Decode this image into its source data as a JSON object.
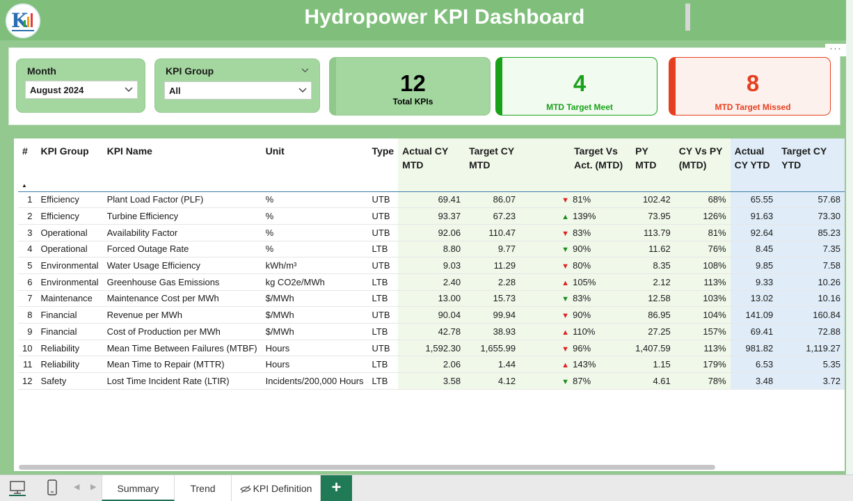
{
  "header": {
    "title": "Hydropower KPI Dashboard"
  },
  "filters": {
    "month": {
      "label": "Month",
      "value": "August 2024"
    },
    "kpi_group": {
      "label": "KPI Group",
      "value": "All"
    }
  },
  "cards": {
    "total": {
      "value": "12",
      "caption": "Total KPIs",
      "color": "#000000"
    },
    "meet": {
      "value": "4",
      "caption": "MTD Target Meet",
      "color": "#1aa11a"
    },
    "missed": {
      "value": "8",
      "caption": "MTD Target Missed",
      "color": "#e53f1f"
    }
  },
  "table": {
    "columns": [
      "#",
      "KPI Group",
      "KPI Name",
      "Unit",
      "Type",
      "Actual CY MTD",
      "Target CY MTD",
      "Target Vs Act. (MTD)",
      "PY MTD",
      "CY Vs PY (MTD)",
      "Actual CY YTD",
      "Target CY YTD"
    ],
    "rows": [
      {
        "n": "1",
        "group": "Efficiency",
        "name": "Plant Load Factor (PLF)",
        "unit": "%",
        "type": "UTB",
        "act": "69.41",
        "tgt": "86.07",
        "dir": "down",
        "tva": "81%",
        "py": "102.42",
        "cvp": "68%",
        "ytd": "65.55",
        "tytd": "57.68"
      },
      {
        "n": "2",
        "group": "Efficiency",
        "name": "Turbine Efficiency",
        "unit": "%",
        "type": "UTB",
        "act": "93.37",
        "tgt": "67.23",
        "dir": "up",
        "tva": "139%",
        "py": "73.95",
        "cvp": "126%",
        "ytd": "91.63",
        "tytd": "73.30"
      },
      {
        "n": "3",
        "group": "Operational",
        "name": "Availability Factor",
        "unit": "%",
        "type": "UTB",
        "act": "92.06",
        "tgt": "110.47",
        "dir": "down",
        "tva": "83%",
        "py": "113.79",
        "cvp": "81%",
        "ytd": "92.64",
        "tytd": "85.23"
      },
      {
        "n": "4",
        "group": "Operational",
        "name": "Forced Outage Rate",
        "unit": "%",
        "type": "LTB",
        "act": "8.80",
        "tgt": "9.77",
        "dir": "down-g",
        "tva": "90%",
        "py": "11.62",
        "cvp": "76%",
        "ytd": "8.45",
        "tytd": "7.35"
      },
      {
        "n": "5",
        "group": "Environmental",
        "name": "Water Usage Efficiency",
        "unit": "kWh/m³",
        "type": "UTB",
        "act": "9.03",
        "tgt": "11.29",
        "dir": "down",
        "tva": "80%",
        "py": "8.35",
        "cvp": "108%",
        "ytd": "9.85",
        "tytd": "7.58"
      },
      {
        "n": "6",
        "group": "Environmental",
        "name": "Greenhouse Gas Emissions",
        "unit": "kg CO2e/MWh",
        "type": "LTB",
        "act": "2.40",
        "tgt": "2.28",
        "dir": "up-r",
        "tva": "105%",
        "py": "2.12",
        "cvp": "113%",
        "ytd": "9.33",
        "tytd": "10.26"
      },
      {
        "n": "7",
        "group": "Maintenance",
        "name": "Maintenance Cost per MWh",
        "unit": "$/MWh",
        "type": "LTB",
        "act": "13.00",
        "tgt": "15.73",
        "dir": "down-g",
        "tva": "83%",
        "py": "12.58",
        "cvp": "103%",
        "ytd": "13.02",
        "tytd": "10.16"
      },
      {
        "n": "8",
        "group": "Financial",
        "name": "Revenue per MWh",
        "unit": "$/MWh",
        "type": "UTB",
        "act": "90.04",
        "tgt": "99.94",
        "dir": "down",
        "tva": "90%",
        "py": "86.95",
        "cvp": "104%",
        "ytd": "141.09",
        "tytd": "160.84"
      },
      {
        "n": "9",
        "group": "Financial",
        "name": "Cost of Production per MWh",
        "unit": "$/MWh",
        "type": "LTB",
        "act": "42.78",
        "tgt": "38.93",
        "dir": "up-r",
        "tva": "110%",
        "py": "27.25",
        "cvp": "157%",
        "ytd": "69.41",
        "tytd": "72.88"
      },
      {
        "n": "10",
        "group": "Reliability",
        "name": "Mean Time Between Failures (MTBF)",
        "unit": "Hours",
        "type": "UTB",
        "act": "1,592.30",
        "tgt": "1,655.99",
        "dir": "down",
        "tva": "96%",
        "py": "1,407.59",
        "cvp": "113%",
        "ytd": "981.82",
        "tytd": "1,119.27"
      },
      {
        "n": "11",
        "group": "Reliability",
        "name": "Mean Time to Repair (MTTR)",
        "unit": "Hours",
        "type": "LTB",
        "act": "2.06",
        "tgt": "1.44",
        "dir": "up-r",
        "tva": "143%",
        "py": "1.15",
        "cvp": "179%",
        "ytd": "6.53",
        "tytd": "5.35"
      },
      {
        "n": "12",
        "group": "Safety",
        "name": "Lost Time Incident Rate (LTIR)",
        "unit": "Incidents/200,000 Hours",
        "type": "LTB",
        "act": "3.58",
        "tgt": "4.12",
        "dir": "down-g",
        "tva": "87%",
        "py": "4.61",
        "cvp": "78%",
        "ytd": "3.48",
        "tytd": "3.72"
      }
    ]
  },
  "tabs": [
    "Summary",
    "Trend",
    "KPI Definition"
  ],
  "add_tab_label": "+",
  "icons": {
    "desktop": "desktop-icon",
    "mobile": "mobile-icon",
    "hidden": "eye-hidden-icon"
  }
}
